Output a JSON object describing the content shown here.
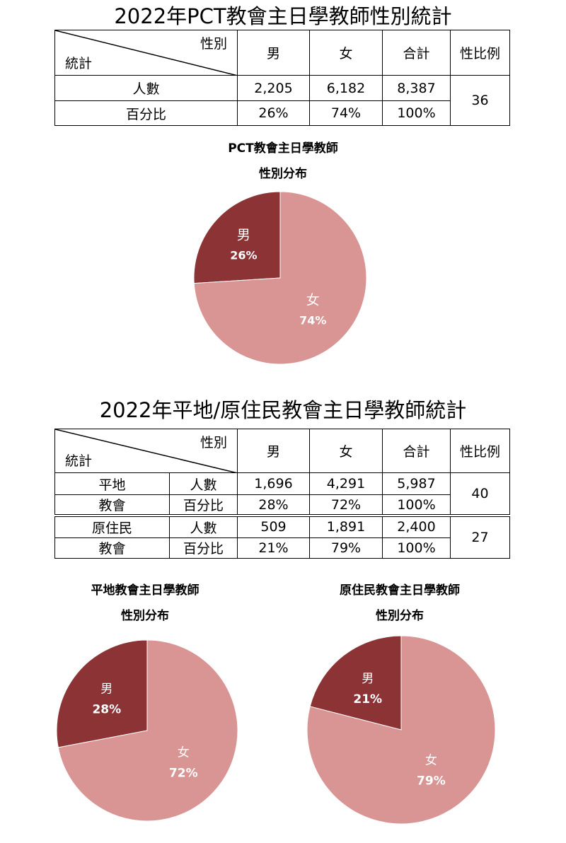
{
  "section1": {
    "title": "2022年PCT教會主日學教師性別統計",
    "header": {
      "gender": "性別",
      "stat": "統計",
      "male": "男",
      "female": "女",
      "total": "合計",
      "ratio": "性比例"
    },
    "rows": [
      {
        "label": "人數",
        "male": "2,205",
        "female": "6,182",
        "total": "8,387"
      },
      {
        "label": "百分比",
        "male": "26%",
        "female": "74%",
        "total": "100%"
      }
    ],
    "ratio": "36"
  },
  "section2": {
    "title": "2022年平地/原住民教會主日學教師統計",
    "header": {
      "gender": "性別",
      "stat": "統計",
      "male": "男",
      "female": "女",
      "total": "合計",
      "ratio": "性比例"
    },
    "groups": [
      {
        "name_line1": "平地",
        "name_line2": "教會",
        "count_label": "人數",
        "pct_label": "百分比",
        "male_count": "1,696",
        "female_count": "4,291",
        "total_count": "5,987",
        "male_pct": "28%",
        "female_pct": "72%",
        "total_pct": "100%",
        "ratio": "40"
      },
      {
        "name_line1": "原住民",
        "name_line2": "教會",
        "count_label": "人數",
        "pct_label": "百分比",
        "male_count": "509",
        "female_count": "1,891",
        "total_count": "2,400",
        "male_pct": "21%",
        "female_pct": "79%",
        "total_pct": "100%",
        "ratio": "27"
      }
    ]
  },
  "colors": {
    "male": "#8c3435",
    "female": "#d99594"
  },
  "chart_data": [
    {
      "type": "pie",
      "title_line1": "PCT教會主日學教師",
      "title_line2": "性別分布",
      "categories": [
        "男",
        "女"
      ],
      "values": [
        26,
        74
      ],
      "labels": [
        "26%",
        "74%"
      ]
    },
    {
      "type": "pie",
      "title_line1": "平地教會主日學教師",
      "title_line2": "性別分布",
      "categories": [
        "男",
        "女"
      ],
      "values": [
        28,
        72
      ],
      "labels": [
        "28%",
        "72%"
      ]
    },
    {
      "type": "pie",
      "title_line1": "原住民教會主日學教師",
      "title_line2": "性別分布",
      "categories": [
        "男",
        "女"
      ],
      "values": [
        21,
        79
      ],
      "labels": [
        "21%",
        "79%"
      ]
    }
  ]
}
